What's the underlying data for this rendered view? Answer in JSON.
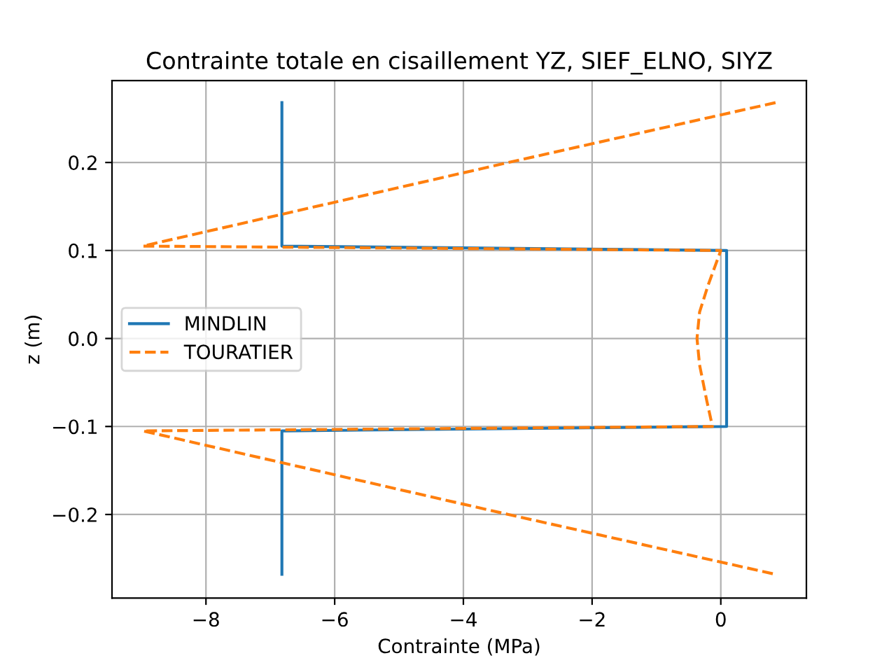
{
  "chart_data": {
    "type": "line",
    "title": "Contrainte totale en cisaillement YZ, SIEF_ELNO, SIYZ",
    "xlabel": "Contrainte (MPa)",
    "ylabel": "z (m)",
    "xlim": [
      -9.46,
      1.33
    ],
    "ylim": [
      -0.295,
      0.293
    ],
    "xticks": [
      {
        "value": -8,
        "label": "−8"
      },
      {
        "value": -6,
        "label": "−6"
      },
      {
        "value": -4,
        "label": "−4"
      },
      {
        "value": -2,
        "label": "−2"
      },
      0
    ],
    "yticks": [
      {
        "value": -0.2,
        "label": "−0.2"
      },
      {
        "value": -0.1,
        "label": "−0.1"
      },
      {
        "value": 0,
        "label": "0.0"
      },
      {
        "value": 0.1,
        "label": "0.1"
      },
      {
        "value": 0.2,
        "label": "0.2"
      }
    ],
    "grid": true,
    "legend": "center left",
    "series": [
      {
        "name": "MINDLIN",
        "color": "#1f77b4",
        "line_style": "solid",
        "x": [
          -6.82,
          -6.82,
          0.09,
          0.09,
          -6.82,
          -6.82
        ],
        "values": [
          0.268,
          0.105,
          0.1,
          -0.1,
          -0.105,
          -0.268
        ]
      },
      {
        "name": "TOURATIER",
        "color": "#ff7f0e",
        "line_style": "dashed",
        "x": [
          0.85,
          -3.3,
          -8.98,
          0,
          -0.2,
          -0.33,
          -0.37,
          -0.33,
          -0.22,
          -0.13,
          -8.98,
          -3.3,
          0.85
        ],
        "values": [
          0.268,
          0.2,
          0.105,
          0.1,
          0.06,
          0.03,
          0,
          -0.03,
          -0.07,
          -0.1,
          -0.105,
          -0.2,
          -0.268
        ]
      }
    ]
  }
}
